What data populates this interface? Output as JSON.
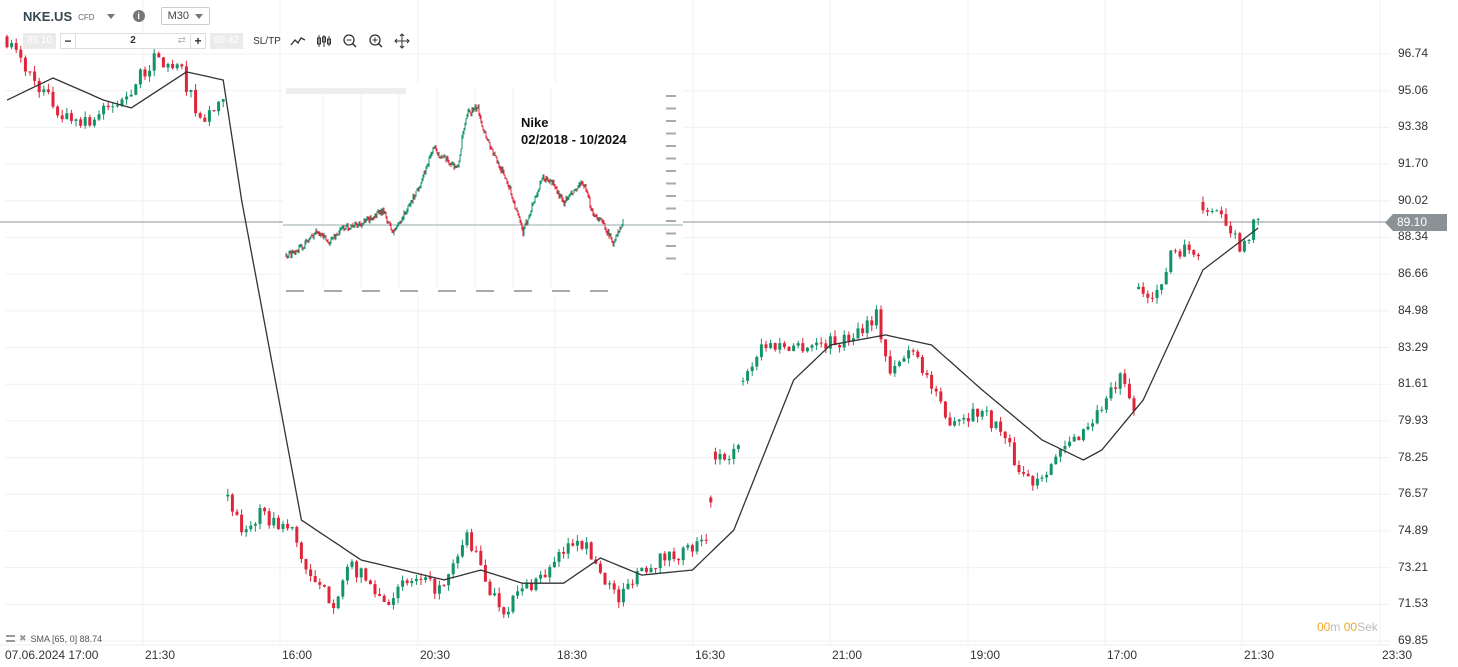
{
  "header": {
    "symbol": "NKE.US",
    "instrument_type": "CFD",
    "timeframe": "M30"
  },
  "trade_bar": {
    "sell_price": "89.10",
    "quantity": "2",
    "buy_price": "89.42",
    "sltp_label": "SL/TP",
    "minus": "−",
    "plus": "+"
  },
  "toolbar_icons": [
    "line-chart-icon",
    "candlestick-icon",
    "zoom-out-icon",
    "zoom-in-icon",
    "move-icon"
  ],
  "y_axis": [
    "96.74",
    "95.06",
    "93.38",
    "91.70",
    "90.02",
    "88.34",
    "86.66",
    "84.98",
    "83.29",
    "81.61",
    "79.93",
    "78.25",
    "76.57",
    "74.89",
    "73.21",
    "71.53",
    "69.85"
  ],
  "x_axis": [
    "07.06.2024 17:00",
    "21:30",
    "16:00",
    "20:30",
    "18:30",
    "16:30",
    "21:00",
    "19:00",
    "17:00",
    "21:30",
    "23:30"
  ],
  "current_price": "89.10",
  "indicator": {
    "label": "SMA [65, 0] 88.74"
  },
  "timer": {
    "min": "00",
    "min_unit": "m",
    "sec": "00",
    "sec_unit": "Sek"
  },
  "colors": {
    "up": "#13936a",
    "down": "#e0243a",
    "sma": "#333333",
    "price_line": "#8a9296"
  },
  "price_path": [
    [
      0,
      97.4
    ],
    [
      5,
      95.8
    ],
    [
      12,
      93.9
    ],
    [
      18,
      93.7
    ],
    [
      25,
      94.6
    ],
    [
      32,
      96.5
    ],
    [
      38,
      95.9
    ],
    [
      42,
      93.7
    ],
    [
      47,
      94.4
    ],
    [
      48,
      76.3
    ],
    [
      51,
      74.9
    ],
    [
      55,
      75.6
    ],
    [
      62,
      74.9
    ],
    [
      66,
      72.6
    ],
    [
      71,
      71.7
    ],
    [
      75,
      73.3
    ],
    [
      82,
      71.7
    ],
    [
      88,
      72.6
    ],
    [
      95,
      72.2
    ],
    [
      100,
      74.7
    ],
    [
      105,
      72.2
    ],
    [
      108,
      71.3
    ],
    [
      112,
      72.2
    ],
    [
      118,
      73.1
    ],
    [
      124,
      74.7
    ],
    [
      129,
      73.1
    ],
    [
      133,
      71.7
    ],
    [
      137,
      73.1
    ],
    [
      142,
      73.6
    ],
    [
      152,
      74.3
    ],
    [
      154,
      78.4
    ],
    [
      159,
      78.6
    ],
    [
      160,
      81.8
    ],
    [
      164,
      83.4
    ],
    [
      173,
      83.4
    ],
    [
      182,
      83.6
    ],
    [
      189,
      84.8
    ],
    [
      192,
      82.0
    ],
    [
      197,
      83.4
    ],
    [
      204,
      80.0
    ],
    [
      212,
      80.4
    ],
    [
      216,
      79.5
    ],
    [
      220,
      77.7
    ],
    [
      223,
      77.2
    ],
    [
      229,
      78.4
    ],
    [
      236,
      80.0
    ],
    [
      242,
      81.8
    ],
    [
      245,
      80.4
    ],
    [
      246,
      85.9
    ],
    [
      251,
      85.9
    ],
    [
      253,
      87.8
    ],
    [
      259,
      87.8
    ],
    [
      260,
      89.8
    ],
    [
      264,
      89.6
    ],
    [
      268,
      88.0
    ],
    [
      272,
      89.1
    ]
  ],
  "sma_path": [
    [
      0,
      94.63
    ],
    [
      10,
      95.64
    ],
    [
      21,
      94.63
    ],
    [
      27,
      94.27
    ],
    [
      39,
      95.92
    ],
    [
      47,
      95.55
    ],
    [
      51,
      90.05
    ],
    [
      64,
      75.39
    ],
    [
      77,
      73.56
    ],
    [
      95,
      72.65
    ],
    [
      103,
      73.1
    ],
    [
      112,
      72.5
    ],
    [
      121,
      72.5
    ],
    [
      129,
      73.65
    ],
    [
      138,
      72.87
    ],
    [
      149,
      73.1
    ],
    [
      158,
      74.93
    ],
    [
      171,
      81.8
    ],
    [
      179,
      83.41
    ],
    [
      191,
      83.87
    ],
    [
      201,
      83.41
    ],
    [
      212,
      81.35
    ],
    [
      225,
      79.06
    ],
    [
      234,
      78.14
    ],
    [
      238,
      78.6
    ],
    [
      247,
      80.89
    ],
    [
      260,
      86.85
    ],
    [
      272,
      88.77
    ]
  ],
  "inset": {
    "title_line1": "Nike",
    "title_line2": "02/2018 - 10/2024",
    "path": [
      [
        0,
        47
      ],
      [
        17,
        57
      ],
      [
        32,
        73
      ],
      [
        42,
        60
      ],
      [
        57,
        75
      ],
      [
        77,
        80
      ],
      [
        97,
        92
      ],
      [
        107,
        70
      ],
      [
        122,
        95
      ],
      [
        137,
        125
      ],
      [
        147,
        155
      ],
      [
        157,
        145
      ],
      [
        172,
        135
      ],
      [
        177,
        170
      ],
      [
        182,
        190
      ],
      [
        192,
        195
      ],
      [
        197,
        175
      ],
      [
        207,
        150
      ],
      [
        222,
        120
      ],
      [
        237,
        70
      ],
      [
        247,
        100
      ],
      [
        257,
        125
      ],
      [
        267,
        120
      ],
      [
        277,
        100
      ],
      [
        287,
        110
      ],
      [
        297,
        120
      ],
      [
        307,
        90
      ],
      [
        317,
        80
      ],
      [
        327,
        60
      ],
      [
        337,
        80
      ]
    ]
  }
}
